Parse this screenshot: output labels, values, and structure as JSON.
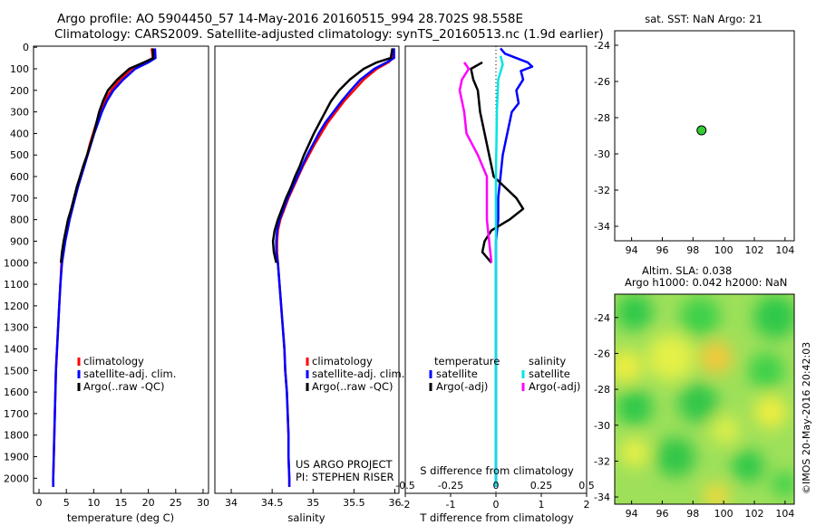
{
  "title_line1": "Argo profile: AO 5904450_57 14-May-2016 20160515_994 28.702S 98.558E",
  "title_line2": "Climatology: CARS2009. Satellite-adjusted climatology: synTS_20160513.nc (1.9d earlier)",
  "pressure_ticks": [
    "0",
    "100",
    "200",
    "300",
    "400",
    "500",
    "600",
    "700",
    "800",
    "900",
    "1000",
    "1100",
    "1200",
    "1300",
    "1400",
    "1500",
    "1600",
    "1700",
    "1800",
    "1900",
    "2000"
  ],
  "legend": {
    "climatology": "climatology",
    "satellite_adj": "satellite-adj. clim.",
    "argo": "Argo(..raw -QC)",
    "temperature_head": "temperature",
    "salinity_head": "salinity",
    "satellite": "satellite",
    "argo_adj": "Argo(-adj)"
  },
  "project_line1": "US ARGO PROJECT",
  "project_line2": "PI: STEPHEN RISER",
  "sst_title": "sat. SST: NaN Argo: 21",
  "sla_line1": "Altim. SLA: 0.038",
  "sla_line2": "Argo h1000: 0.042 h2000: NaN",
  "credit": "©IMOS 20-May-2016 20:42:03",
  "colors": {
    "climatology": "#ff0000",
    "satellite": "#0000ff",
    "argo": "#000000",
    "sal_sat": "#00e5e5",
    "sal_argo": "#ff00ff",
    "float": "#33cc33"
  },
  "chart_data": [
    {
      "type": "line",
      "xlabel": "temperature (deg C)",
      "xticks": [
        "0",
        "5",
        "10",
        "15",
        "20",
        "25",
        "30"
      ],
      "xlim": [
        -1,
        31
      ],
      "ylim": [
        2070,
        -5
      ],
      "series": [
        {
          "name": "climatology",
          "color": "#ff0000",
          "points": [
            [
              20.6,
              5
            ],
            [
              20.8,
              50
            ],
            [
              19.5,
              70
            ],
            [
              17,
              100
            ],
            [
              14.8,
              150
            ],
            [
              13.2,
              200
            ],
            [
              12,
              250
            ],
            [
              11.2,
              300
            ],
            [
              10.5,
              350
            ],
            [
              9.9,
              400
            ],
            [
              9.3,
              450
            ],
            [
              8.8,
              500
            ],
            [
              8.2,
              550
            ],
            [
              7.6,
              600
            ],
            [
              7,
              650
            ],
            [
              6.5,
              700
            ],
            [
              6,
              750
            ],
            [
              5.5,
              800
            ],
            [
              5.1,
              850
            ],
            [
              4.7,
              900
            ],
            [
              4.4,
              950
            ],
            [
              4.1,
              1000
            ],
            [
              3.9,
              1100
            ],
            [
              3.7,
              1200
            ],
            [
              3.5,
              1300
            ],
            [
              3.3,
              1400
            ],
            [
              3.1,
              1500
            ],
            [
              3,
              1600
            ],
            [
              2.9,
              1700
            ],
            [
              2.8,
              1800
            ],
            [
              2.7,
              1900
            ],
            [
              2.6,
              2000
            ],
            [
              2.6,
              2040
            ]
          ]
        },
        {
          "name": "satellite-adj. clim.",
          "color": "#0000ff",
          "points": [
            [
              21.2,
              5
            ],
            [
              21.3,
              50
            ],
            [
              20,
              70
            ],
            [
              17.6,
              100
            ],
            [
              15.4,
              150
            ],
            [
              13.6,
              200
            ],
            [
              12.4,
              250
            ],
            [
              11.5,
              300
            ],
            [
              10.8,
              350
            ],
            [
              10.1,
              400
            ],
            [
              9.5,
              450
            ],
            [
              8.9,
              500
            ],
            [
              8.3,
              550
            ],
            [
              7.7,
              600
            ],
            [
              7.1,
              650
            ],
            [
              6.6,
              700
            ],
            [
              6.1,
              750
            ],
            [
              5.6,
              800
            ],
            [
              5.2,
              850
            ],
            [
              4.8,
              900
            ],
            [
              4.5,
              950
            ],
            [
              4.2,
              1000
            ],
            [
              3.9,
              1100
            ],
            [
              3.7,
              1200
            ],
            [
              3.5,
              1300
            ],
            [
              3.3,
              1400
            ],
            [
              3.1,
              1500
            ],
            [
              3,
              1600
            ],
            [
              2.9,
              1700
            ],
            [
              2.8,
              1800
            ],
            [
              2.7,
              1900
            ],
            [
              2.6,
              2000
            ],
            [
              2.6,
              2040
            ]
          ]
        },
        {
          "name": "Argo(..raw -QC)",
          "color": "#000000",
          "points": [
            [
              20.8,
              5
            ],
            [
              20.9,
              50
            ],
            [
              19.2,
              70
            ],
            [
              16.5,
              100
            ],
            [
              14.3,
              150
            ],
            [
              12.6,
              200
            ],
            [
              11.7,
              250
            ],
            [
              11,
              300
            ],
            [
              10.5,
              350
            ],
            [
              10,
              400
            ],
            [
              9.4,
              450
            ],
            [
              8.8,
              500
            ],
            [
              8.1,
              550
            ],
            [
              7.5,
              600
            ],
            [
              6.9,
              650
            ],
            [
              6.4,
              700
            ],
            [
              5.9,
              750
            ],
            [
              5.3,
              800
            ],
            [
              4.9,
              850
            ],
            [
              4.5,
              900
            ],
            [
              4.2,
              950
            ],
            [
              4,
              1000
            ]
          ]
        }
      ]
    },
    {
      "type": "line",
      "xlabel": "salinity",
      "xticks": [
        "34",
        "34.5",
        "35",
        "35.5",
        "36"
      ],
      "xlim": [
        33.8,
        36.05
      ],
      "ylim": [
        2070,
        -5
      ],
      "series": [
        {
          "name": "climatology",
          "color": "#ff0000",
          "points": [
            [
              35.98,
              5
            ],
            [
              35.98,
              50
            ],
            [
              35.92,
              70
            ],
            [
              35.78,
              100
            ],
            [
              35.62,
              150
            ],
            [
              35.5,
              200
            ],
            [
              35.38,
              250
            ],
            [
              35.28,
              300
            ],
            [
              35.18,
              350
            ],
            [
              35.1,
              400
            ],
            [
              35.02,
              450
            ],
            [
              34.95,
              500
            ],
            [
              34.88,
              550
            ],
            [
              34.82,
              600
            ],
            [
              34.76,
              650
            ],
            [
              34.7,
              700
            ],
            [
              34.65,
              750
            ],
            [
              34.6,
              800
            ],
            [
              34.57,
              850
            ],
            [
              34.56,
              900
            ],
            [
              34.56,
              950
            ],
            [
              34.57,
              1000
            ],
            [
              34.59,
              1100
            ],
            [
              34.61,
              1200
            ],
            [
              34.63,
              1300
            ],
            [
              34.65,
              1400
            ],
            [
              34.66,
              1500
            ],
            [
              34.68,
              1600
            ],
            [
              34.69,
              1700
            ],
            [
              34.7,
              1800
            ],
            [
              34.7,
              1900
            ],
            [
              34.71,
              2000
            ],
            [
              34.71,
              2040
            ]
          ]
        },
        {
          "name": "satellite-adj. clim.",
          "color": "#0000ff",
          "points": [
            [
              35.99,
              5
            ],
            [
              35.99,
              50
            ],
            [
              35.9,
              70
            ],
            [
              35.75,
              100
            ],
            [
              35.58,
              150
            ],
            [
              35.46,
              200
            ],
            [
              35.35,
              250
            ],
            [
              35.25,
              300
            ],
            [
              35.15,
              350
            ],
            [
              35.07,
              400
            ],
            [
              35,
              450
            ],
            [
              34.93,
              500
            ],
            [
              34.87,
              550
            ],
            [
              34.81,
              600
            ],
            [
              34.75,
              650
            ],
            [
              34.69,
              700
            ],
            [
              34.64,
              750
            ],
            [
              34.59,
              800
            ],
            [
              34.56,
              850
            ],
            [
              34.55,
              900
            ],
            [
              34.55,
              950
            ],
            [
              34.57,
              1000
            ],
            [
              34.59,
              1100
            ],
            [
              34.61,
              1200
            ],
            [
              34.63,
              1300
            ],
            [
              34.65,
              1400
            ],
            [
              34.66,
              1500
            ],
            [
              34.68,
              1600
            ],
            [
              34.69,
              1700
            ],
            [
              34.7,
              1800
            ],
            [
              34.7,
              1900
            ],
            [
              34.71,
              2000
            ],
            [
              34.71,
              2040
            ]
          ]
        },
        {
          "name": "Argo(..raw -QC)",
          "color": "#000000",
          "points": [
            [
              35.97,
              5
            ],
            [
              35.95,
              50
            ],
            [
              35.78,
              70
            ],
            [
              35.62,
              100
            ],
            [
              35.45,
              150
            ],
            [
              35.32,
              200
            ],
            [
              35.22,
              250
            ],
            [
              35.15,
              300
            ],
            [
              35.08,
              350
            ],
            [
              35.01,
              400
            ],
            [
              34.95,
              450
            ],
            [
              34.89,
              500
            ],
            [
              34.84,
              550
            ],
            [
              34.78,
              600
            ],
            [
              34.73,
              650
            ],
            [
              34.67,
              700
            ],
            [
              34.62,
              750
            ],
            [
              34.57,
              800
            ],
            [
              34.53,
              850
            ],
            [
              34.51,
              900
            ],
            [
              34.52,
              950
            ],
            [
              34.55,
              1000
            ]
          ]
        }
      ]
    },
    {
      "type": "line",
      "xlabel": "T difference from climatology",
      "xlabel_top": "S difference from climatology",
      "xticks": [
        "-2",
        "-1",
        "0",
        "1",
        "2"
      ],
      "xticks_s": [
        "-0.5",
        "-0.25",
        "0",
        "0.25",
        "0.5"
      ],
      "xlim": [
        -2,
        2
      ],
      "ylim": [
        2070,
        -5
      ],
      "series": [
        {
          "name": "temperature satellite",
          "color": "#0000ff",
          "points": [
            [
              0.1,
              5
            ],
            [
              0.2,
              30
            ],
            [
              0.7,
              70
            ],
            [
              0.8,
              90
            ],
            [
              0.55,
              110
            ],
            [
              0.6,
              150
            ],
            [
              0.45,
              200
            ],
            [
              0.5,
              260
            ],
            [
              0.35,
              300
            ],
            [
              0.25,
              400
            ],
            [
              0.15,
              500
            ],
            [
              0.1,
              600
            ],
            [
              0.05,
              700
            ],
            [
              0.05,
              800
            ],
            [
              0,
              900
            ],
            [
              0,
              1000
            ],
            [
              0,
              1100
            ],
            [
              0,
              1300
            ],
            [
              0,
              1500
            ],
            [
              0,
              1700
            ],
            [
              0,
              2040
            ]
          ]
        },
        {
          "name": "temperature Argo(-adj)",
          "color": "#000000",
          "points": [
            [
              -0.3,
              70
            ],
            [
              -0.55,
              100
            ],
            [
              -0.5,
              150
            ],
            [
              -0.4,
              200
            ],
            [
              -0.35,
              300
            ],
            [
              -0.25,
              400
            ],
            [
              -0.15,
              500
            ],
            [
              -0.05,
              600
            ],
            [
              0.45,
              700
            ],
            [
              0.6,
              750
            ],
            [
              0.3,
              800
            ],
            [
              -0.1,
              850
            ],
            [
              -0.25,
              900
            ],
            [
              -0.3,
              950
            ],
            [
              -0.1,
              1000
            ]
          ]
        },
        {
          "name": "salinity satellite",
          "color": "#00e5e5",
          "points": [
            [
              0.1,
              40
            ],
            [
              0.15,
              80
            ],
            [
              0.05,
              150
            ],
            [
              0.02,
              300
            ],
            [
              0,
              600
            ],
            [
              0,
              1000
            ],
            [
              0,
              1500
            ],
            [
              0,
              2040
            ]
          ]
        },
        {
          "name": "salinity Argo(-adj)",
          "color": "#ff00ff",
          "points": [
            [
              -0.7,
              70
            ],
            [
              -0.6,
              100
            ],
            [
              -0.75,
              150
            ],
            [
              -0.8,
              200
            ],
            [
              -0.7,
              300
            ],
            [
              -0.65,
              400
            ],
            [
              -0.4,
              500
            ],
            [
              -0.2,
              600
            ],
            [
              -0.2,
              800
            ],
            [
              -0.15,
              900
            ],
            [
              -0.1,
              1000
            ]
          ]
        }
      ]
    },
    {
      "type": "scatter",
      "xticks": [
        "94",
        "96",
        "98",
        "100",
        "102",
        "104"
      ],
      "yticks": [
        "-24",
        "-26",
        "-28",
        "-30",
        "-32",
        "-34"
      ],
      "xlim": [
        92.9,
        104.6
      ],
      "ylim": [
        -23.2,
        -34.8
      ],
      "points": [
        {
          "lon": 98.558,
          "lat": -28.702
        }
      ]
    },
    {
      "type": "heatmap",
      "xticks": [
        "94",
        "96",
        "98",
        "100",
        "102",
        "104"
      ],
      "yticks": [
        "-24",
        "-26",
        "-28",
        "-30",
        "-32",
        "-34"
      ],
      "xlim": [
        92.9,
        104.6
      ],
      "ylim": [
        -22.7,
        -34.4
      ]
    }
  ]
}
